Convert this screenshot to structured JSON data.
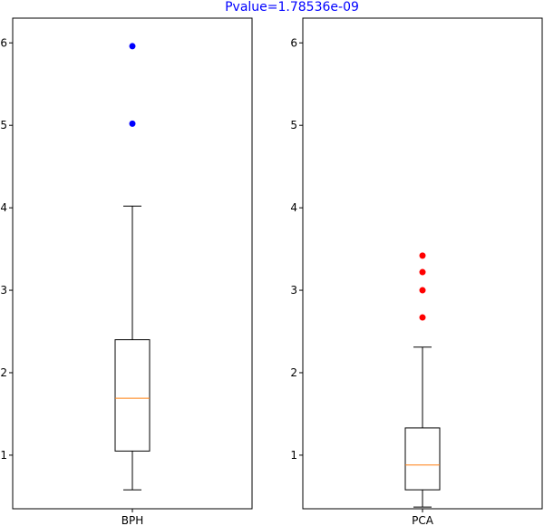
{
  "chart_data": {
    "title": "Pvalue=1.78536e-09",
    "title_color": "#0000ff",
    "type": "boxplot",
    "median_color": "#ff7f0e",
    "grid": false,
    "panels": [
      {
        "category": "BPH",
        "ylim": [
          0.35,
          6.3
        ],
        "yticks": [
          1,
          2,
          3,
          4,
          5,
          6
        ],
        "box": {
          "whisker_low": 0.58,
          "q1": 1.05,
          "median": 1.69,
          "q3": 2.4,
          "whisker_high": 4.02
        },
        "outliers": [
          5.02,
          5.96
        ],
        "outlier_color": "#0000ff"
      },
      {
        "category": "PCA",
        "ylim": [
          0.35,
          6.3
        ],
        "yticks": [
          1,
          2,
          3,
          4,
          5,
          6
        ],
        "box": {
          "whisker_low": 0.37,
          "q1": 0.58,
          "median": 0.88,
          "q3": 1.33,
          "whisker_high": 2.31
        },
        "outliers": [
          2.67,
          3.0,
          3.22,
          3.42
        ],
        "outlier_color": "#ff0000"
      }
    ]
  }
}
